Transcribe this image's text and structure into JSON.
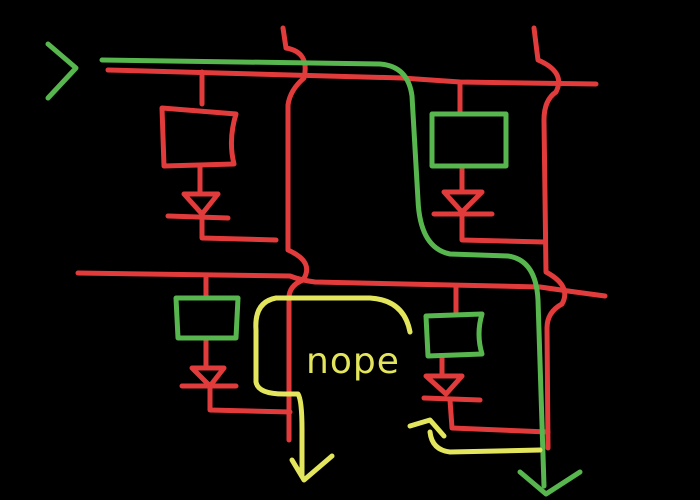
{
  "diagram": {
    "annotation_text": "nope",
    "colors": {
      "background": "#000000",
      "circuit_wire": "#e23b3b",
      "allowed_path": "#58b64e",
      "blocked_path": "#e3e65d"
    }
  }
}
